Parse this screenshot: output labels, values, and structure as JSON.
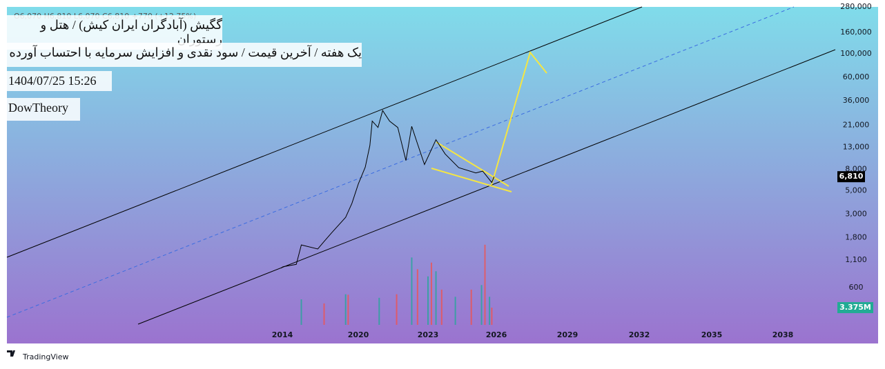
{
  "header": {
    "ohlc": "O6,070 H6,810 L6,070 C6,810 +770 (+12.75%)",
    "title": "گگیش (آبادگران ایران کیش) / هتل و رستوران",
    "subtitle": "یک هفته / آخرین قیمت / سود نقدی و افزایش سرمایه با احتساب آورده",
    "date": "1404/07/25 15:26",
    "author": "DowTheory"
  },
  "footer": {
    "brand": "TradingView"
  },
  "chart_data": {
    "type": "line",
    "log_scale": true,
    "color": "#000000",
    "x": [
      2013.9,
      2014.05,
      2015.1,
      2015.5,
      2016.8,
      2017.3,
      2017.9,
      2019.0,
      2019.5,
      2020.0,
      2020.3,
      2020.5,
      2020.6,
      2020.85,
      2021.05,
      2021.35,
      2021.7,
      2022.05,
      2022.3,
      2022.55,
      2022.85,
      2023.35,
      2023.75,
      2024.35,
      2025.1,
      2025.4,
      2025.8,
      2025.9
    ],
    "values": [
      920,
      950,
      1000,
      1530,
      1400,
      1650,
      2000,
      2800,
      3800,
      5800,
      8400,
      13500,
      23000,
      20000,
      29000,
      23000,
      20000,
      9700,
      20500,
      14000,
      8900,
      15300,
      11200,
      8300,
      7400,
      7700,
      6000,
      6810
    ],
    "last_price": {
      "value": 6810,
      "label": "6,810"
    },
    "volume": {
      "colors": [
        "#26a69a",
        "#ef5350"
      ],
      "x": [
        2015.5,
        2017.3,
        2019.0,
        2019.2,
        2020.9,
        2021.65,
        2022.3,
        2022.55,
        2023.0,
        2023.15,
        2023.35,
        2023.6,
        2024.2,
        2024.9,
        2025.35,
        2025.5,
        2025.7,
        2025.8
      ],
      "values": [
        5.0,
        4.2,
        6,
        5.9,
        5.3,
        6,
        13.2,
        10.9,
        9.5,
        12.2,
        10.5,
        6.9,
        5.5,
        6.9,
        7.8,
        15.7,
        5.5,
        3.375
      ],
      "last": {
        "value": 3.375,
        "label": "3.375M"
      }
    },
    "ylim": [
      177,
      280000
    ],
    "yticks": [
      {
        "value": 600,
        "label": "600"
      },
      {
        "value": 1100,
        "label": "1,100"
      },
      {
        "value": 1800,
        "label": "1,800"
      },
      {
        "value": 3000,
        "label": "3,000"
      },
      {
        "value": 5000,
        "label": "5,000"
      },
      {
        "value": 8000,
        "label": "8,000"
      },
      {
        "value": 13000,
        "label": "13,000"
      },
      {
        "value": 21000,
        "label": "21,000"
      },
      {
        "value": 36000,
        "label": "36,000"
      },
      {
        "value": 60000,
        "label": "60,000"
      },
      {
        "value": 100000,
        "label": "100,000"
      },
      {
        "value": 160000,
        "label": "160,000"
      },
      {
        "value": 280000,
        "label": "280,000"
      }
    ],
    "xticks": [
      2014,
      2020,
      2023,
      2026,
      2029,
      2032,
      2035,
      2038
    ]
  }
}
